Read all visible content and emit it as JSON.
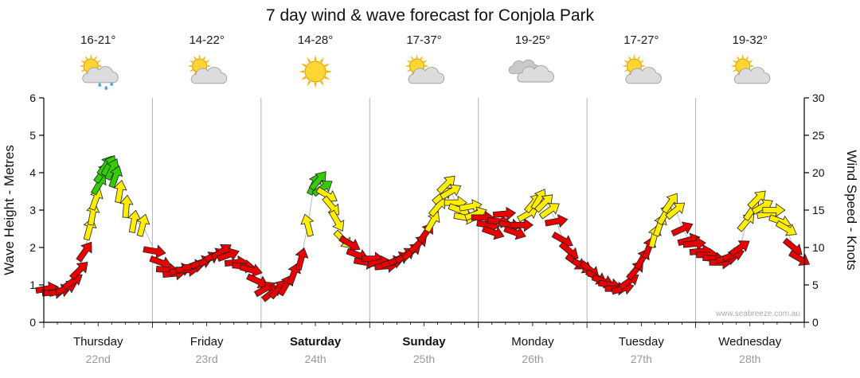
{
  "title": "7 day wind & wave forecast for Conjola Park",
  "watermark": "www.seabreeze.com.au",
  "days": [
    {
      "name": "Thursday",
      "date": "22nd",
      "temp": "16-21°",
      "icon": "sun-cloud-rain",
      "weekend": false
    },
    {
      "name": "Friday",
      "date": "23rd",
      "temp": "14-22°",
      "icon": "sun-cloud",
      "weekend": false
    },
    {
      "name": "Saturday",
      "date": "24th",
      "temp": "14-28°",
      "icon": "sun",
      "weekend": true
    },
    {
      "name": "Sunday",
      "date": "25th",
      "temp": "17-37°",
      "icon": "sun-cloud",
      "weekend": true
    },
    {
      "name": "Monday",
      "date": "26th",
      "temp": "19-25°",
      "icon": "cloud",
      "weekend": false
    },
    {
      "name": "Tuesday",
      "date": "27th",
      "temp": "17-27°",
      "icon": "sun-cloud",
      "weekend": false
    },
    {
      "name": "Wednesday",
      "date": "28th",
      "temp": "19-32°",
      "icon": "sun-cloud",
      "weekend": false
    }
  ],
  "chart_data": {
    "type": "scatter",
    "description": "Wind forecast arrows over 7 days. Each arrow: [time in days from Thursday 00:00, wind speed in knots (right axis), arrow heading in degrees clockwise from up, color class]. Left axis shows equivalent wave-height scale.",
    "left_axis": {
      "label": "Wave Height - Metres",
      "min": 0,
      "max": 6,
      "ticks": [
        0,
        1,
        2,
        3,
        4,
        5,
        6
      ]
    },
    "right_axis": {
      "label": "Wind Speed - Knots",
      "min": 0,
      "max": 30,
      "ticks": [
        0,
        5,
        10,
        15,
        20,
        25,
        30
      ]
    },
    "x_days": [
      "Thursday",
      "Friday",
      "Saturday",
      "Sunday",
      "Monday",
      "Tuesday",
      "Wednesday"
    ],
    "arrow_colors": {
      "r": "#e60000",
      "y": "#ffee00",
      "g": "#33cc00"
    },
    "trend_line_color": "#bbbbbb",
    "arrows": [
      [
        0.03,
        4.5,
        80,
        "r"
      ],
      [
        0.09,
        4,
        85,
        "r"
      ],
      [
        0.15,
        4.2,
        75,
        "r"
      ],
      [
        0.21,
        4.6,
        65,
        "r"
      ],
      [
        0.27,
        5.5,
        55,
        "r"
      ],
      [
        0.33,
        7,
        45,
        "r"
      ],
      [
        0.38,
        9.5,
        35,
        "r"
      ],
      [
        0.42,
        12.5,
        15,
        "y"
      ],
      [
        0.45,
        14.5,
        10,
        "y"
      ],
      [
        0.48,
        16.5,
        20,
        "y"
      ],
      [
        0.51,
        18.5,
        30,
        "g"
      ],
      [
        0.54,
        20,
        35,
        "g"
      ],
      [
        0.57,
        21,
        35,
        "g"
      ],
      [
        0.6,
        21,
        30,
        "g"
      ],
      [
        0.63,
        20.5,
        25,
        "g"
      ],
      [
        0.66,
        19.5,
        20,
        "g"
      ],
      [
        0.7,
        17.5,
        10,
        "y"
      ],
      [
        0.76,
        15.5,
        5,
        "y"
      ],
      [
        0.83,
        13.5,
        10,
        "y"
      ],
      [
        0.91,
        13,
        15,
        "y"
      ],
      [
        1.02,
        9.5,
        100,
        "r"
      ],
      [
        1.08,
        8,
        110,
        "r"
      ],
      [
        1.14,
        7,
        95,
        "r"
      ],
      [
        1.2,
        6.5,
        85,
        "r"
      ],
      [
        1.26,
        7,
        75,
        "r"
      ],
      [
        1.32,
        7,
        90,
        "r"
      ],
      [
        1.38,
        7.5,
        80,
        "r"
      ],
      [
        1.45,
        8,
        70,
        "r"
      ],
      [
        1.52,
        8.5,
        60,
        "r"
      ],
      [
        1.58,
        9,
        65,
        "r"
      ],
      [
        1.64,
        9.5,
        55,
        "r"
      ],
      [
        1.7,
        9,
        70,
        "r"
      ],
      [
        1.77,
        8,
        85,
        "r"
      ],
      [
        1.84,
        7.5,
        95,
        "r"
      ],
      [
        1.91,
        7,
        105,
        "r"
      ],
      [
        1.97,
        5.5,
        115,
        "r"
      ],
      [
        2.04,
        4.5,
        60,
        "r"
      ],
      [
        2.1,
        4,
        50,
        "r"
      ],
      [
        2.16,
        4.5,
        40,
        "r"
      ],
      [
        2.23,
        5,
        30,
        "r"
      ],
      [
        2.3,
        6.5,
        20,
        "r"
      ],
      [
        2.37,
        8.5,
        15,
        "r"
      ],
      [
        2.43,
        13,
        345,
        "y"
      ],
      [
        2.49,
        18.5,
        25,
        "g"
      ],
      [
        2.53,
        19,
        40,
        "g"
      ],
      [
        2.57,
        18,
        55,
        "g"
      ],
      [
        2.61,
        17,
        120,
        "y"
      ],
      [
        2.65,
        15.5,
        140,
        "y"
      ],
      [
        2.7,
        13.5,
        150,
        "y"
      ],
      [
        2.76,
        11,
        135,
        "y"
      ],
      [
        2.82,
        10.5,
        120,
        "r"
      ],
      [
        2.89,
        9,
        110,
        "r"
      ],
      [
        2.96,
        8,
        100,
        "r"
      ],
      [
        3.03,
        8.5,
        90,
        "r"
      ],
      [
        3.09,
        8,
        80,
        "r"
      ],
      [
        3.15,
        7.5,
        85,
        "r"
      ],
      [
        3.21,
        8,
        75,
        "r"
      ],
      [
        3.27,
        8.5,
        65,
        "r"
      ],
      [
        3.33,
        9,
        55,
        "r"
      ],
      [
        3.39,
        9.5,
        50,
        "r"
      ],
      [
        3.45,
        10.5,
        45,
        "r"
      ],
      [
        3.52,
        12,
        35,
        "r"
      ],
      [
        3.58,
        13.5,
        30,
        "y"
      ],
      [
        3.63,
        15.5,
        40,
        "y"
      ],
      [
        3.67,
        17,
        50,
        "y"
      ],
      [
        3.71,
        18.5,
        45,
        "y"
      ],
      [
        3.75,
        17.5,
        60,
        "y"
      ],
      [
        3.79,
        16,
        90,
        "y"
      ],
      [
        3.83,
        15,
        110,
        "y"
      ],
      [
        3.88,
        14,
        100,
        "y"
      ],
      [
        3.93,
        15.5,
        80,
        "y"
      ],
      [
        3.98,
        14.5,
        70,
        "y"
      ],
      [
        4.04,
        14,
        90,
        "r"
      ],
      [
        4.09,
        13,
        100,
        "r"
      ],
      [
        4.14,
        12,
        110,
        "r"
      ],
      [
        4.19,
        13.5,
        95,
        "r"
      ],
      [
        4.24,
        14.5,
        85,
        "r"
      ],
      [
        4.29,
        13,
        100,
        "r"
      ],
      [
        4.34,
        12,
        110,
        "r"
      ],
      [
        4.4,
        13,
        90,
        "r"
      ],
      [
        4.46,
        14.5,
        60,
        "y"
      ],
      [
        4.51,
        16,
        40,
        "y"
      ],
      [
        4.56,
        16.5,
        30,
        "y"
      ],
      [
        4.61,
        16,
        45,
        "y"
      ],
      [
        4.66,
        15,
        55,
        "y"
      ],
      [
        4.72,
        13.5,
        80,
        "r"
      ],
      [
        4.78,
        11,
        120,
        "r"
      ],
      [
        4.84,
        9.5,
        130,
        "r"
      ],
      [
        4.9,
        8,
        125,
        "r"
      ],
      [
        4.96,
        7.5,
        120,
        "r"
      ],
      [
        5.03,
        7,
        130,
        "r"
      ],
      [
        5.09,
        6,
        120,
        "r"
      ],
      [
        5.15,
        5.5,
        110,
        "r"
      ],
      [
        5.21,
        5,
        100,
        "r"
      ],
      [
        5.27,
        4.5,
        90,
        "r"
      ],
      [
        5.33,
        4.5,
        75,
        "r"
      ],
      [
        5.39,
        5.5,
        55,
        "r"
      ],
      [
        5.45,
        7,
        40,
        "r"
      ],
      [
        5.51,
        8.5,
        30,
        "r"
      ],
      [
        5.57,
        10,
        20,
        "r"
      ],
      [
        5.62,
        11.5,
        15,
        "y"
      ],
      [
        5.67,
        13,
        20,
        "y"
      ],
      [
        5.72,
        14.5,
        30,
        "y"
      ],
      [
        5.77,
        16,
        35,
        "y"
      ],
      [
        5.82,
        15,
        50,
        "y"
      ],
      [
        5.88,
        12.5,
        65,
        "r"
      ],
      [
        5.94,
        11,
        75,
        "r"
      ],
      [
        5.99,
        10.5,
        85,
        "r"
      ],
      [
        6.05,
        9.5,
        85,
        "r"
      ],
      [
        6.11,
        9,
        90,
        "r"
      ],
      [
        6.17,
        8.5,
        95,
        "r"
      ],
      [
        6.23,
        8,
        90,
        "r"
      ],
      [
        6.29,
        8.5,
        80,
        "r"
      ],
      [
        6.35,
        9,
        70,
        "r"
      ],
      [
        6.41,
        10,
        55,
        "r"
      ],
      [
        6.47,
        13.5,
        40,
        "y"
      ],
      [
        6.52,
        15,
        35,
        "y"
      ],
      [
        6.57,
        16.5,
        45,
        "y"
      ],
      [
        6.62,
        15.5,
        60,
        "y"
      ],
      [
        6.67,
        14.5,
        80,
        "y"
      ],
      [
        6.72,
        15,
        90,
        "y"
      ],
      [
        6.78,
        13.5,
        110,
        "y"
      ],
      [
        6.84,
        12.5,
        120,
        "y"
      ],
      [
        6.9,
        10,
        130,
        "r"
      ],
      [
        6.96,
        8.5,
        120,
        "r"
      ]
    ]
  }
}
